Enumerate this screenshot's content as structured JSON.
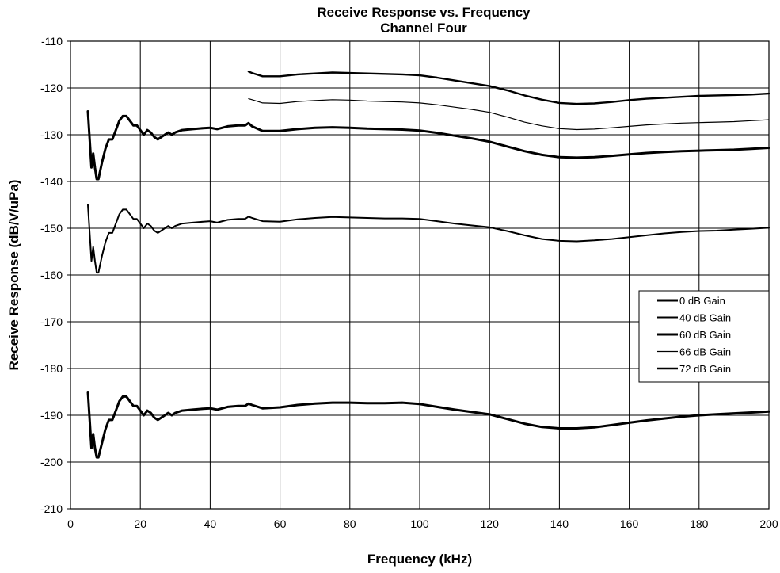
{
  "chart_data": {
    "type": "line",
    "title": "Receive Response vs. Frequency",
    "subtitle": "Channel Four",
    "xlabel": "Frequency (kHz)",
    "ylabel": "Receive Response (dB/V/uPa)",
    "xlim": [
      0,
      200
    ],
    "ylim": [
      -210,
      -110
    ],
    "x_ticks": [
      "0",
      "20",
      "40",
      "60",
      "80",
      "100",
      "120",
      "140",
      "160",
      "180",
      "200"
    ],
    "y_ticks": [
      "-110",
      "-120",
      "-130",
      "-140",
      "-150",
      "-160",
      "-170",
      "-180",
      "-190",
      "-200",
      "-210"
    ],
    "grid": true,
    "legend_position": "right",
    "series": [
      {
        "name": "0 dB Gain",
        "x": [
          5,
          6,
          6.5,
          7,
          7.5,
          8,
          9,
          10,
          11,
          12,
          13,
          14,
          15,
          16,
          17,
          18,
          19,
          20,
          21,
          22,
          23,
          24,
          25,
          26,
          27,
          28,
          29,
          30,
          32,
          35,
          38,
          40,
          42,
          45,
          48,
          50,
          51,
          52,
          55,
          60,
          65,
          70,
          75,
          80,
          85,
          90,
          95,
          100,
          105,
          110,
          115,
          120,
          125,
          130,
          135,
          140,
          145,
          150,
          155,
          160,
          165,
          170,
          175,
          180,
          185,
          190,
          195,
          200
        ],
        "y": [
          -185,
          -197,
          -194,
          -197,
          -199,
          -199,
          -196,
          -193,
          -191,
          -191,
          -189,
          -187,
          -186,
          -186,
          -187,
          -188,
          -188,
          -189,
          -190,
          -189,
          -189.5,
          -190.5,
          -191,
          -190.5,
          -190,
          -189.5,
          -190,
          -189.5,
          -189,
          -188.8,
          -188.6,
          -188.5,
          -188.8,
          -188.2,
          -188,
          -188,
          -187.5,
          -187.8,
          -188.5,
          -188.3,
          -187.8,
          -187.5,
          -187.3,
          -187.3,
          -187.4,
          -187.4,
          -187.3,
          -187.6,
          -188.2,
          -188.8,
          -189.3,
          -189.8,
          -190.8,
          -191.8,
          -192.5,
          -192.8,
          -192.8,
          -192.6,
          -192.1,
          -191.6,
          -191.1,
          -190.7,
          -190.3,
          -190,
          -189.8,
          -189.6,
          -189.4,
          -189.2
        ]
      },
      {
        "name": "40 dB Gain",
        "x": [
          5,
          6,
          6.5,
          7,
          7.5,
          8,
          9,
          10,
          11,
          12,
          13,
          14,
          15,
          16,
          17,
          18,
          19,
          20,
          21,
          22,
          23,
          24,
          25,
          26,
          27,
          28,
          29,
          30,
          32,
          35,
          38,
          40,
          42,
          45,
          48,
          50,
          51,
          52,
          55,
          60,
          65,
          70,
          75,
          80,
          85,
          90,
          95,
          100,
          105,
          110,
          115,
          120,
          125,
          130,
          135,
          140,
          145,
          150,
          155,
          160,
          165,
          170,
          175,
          180,
          185,
          190,
          195,
          200
        ],
        "y": [
          -145,
          -157,
          -154,
          -157,
          -159.5,
          -159.5,
          -156,
          -153,
          -151,
          -151,
          -149,
          -147,
          -146,
          -146,
          -147,
          -148,
          -148,
          -149,
          -150,
          -149,
          -149.5,
          -150.5,
          -151,
          -150.5,
          -150,
          -149.5,
          -150,
          -149.5,
          -149,
          -148.8,
          -148.6,
          -148.5,
          -148.8,
          -148.2,
          -148,
          -148,
          -147.5,
          -147.8,
          -148.5,
          -148.6,
          -148.1,
          -147.8,
          -147.6,
          -147.7,
          -147.8,
          -147.9,
          -147.9,
          -148,
          -148.5,
          -149,
          -149.4,
          -149.8,
          -150.6,
          -151.5,
          -152.3,
          -152.7,
          -152.8,
          -152.6,
          -152.3,
          -151.9,
          -151.5,
          -151.1,
          -150.8,
          -150.6,
          -150.5,
          -150.3,
          -150.1,
          -149.9
        ]
      },
      {
        "name": "60 dB Gain",
        "x": [
          5,
          6,
          6.5,
          7,
          7.5,
          8,
          9,
          10,
          11,
          12,
          13,
          14,
          15,
          16,
          17,
          18,
          19,
          20,
          21,
          22,
          23,
          24,
          25,
          26,
          27,
          28,
          29,
          30,
          32,
          35,
          38,
          40,
          42,
          45,
          48,
          50,
          51,
          52,
          55,
          60,
          65,
          70,
          75,
          80,
          85,
          90,
          95,
          100,
          105,
          110,
          115,
          120,
          125,
          130,
          135,
          140,
          145,
          150,
          155,
          160,
          165,
          170,
          175,
          180,
          185,
          190,
          195,
          200
        ],
        "y": [
          -125,
          -137,
          -134,
          -137,
          -139.5,
          -139.5,
          -136,
          -133,
          -131,
          -131,
          -129,
          -127,
          -126,
          -126,
          -127,
          -128,
          -128,
          -129,
          -130,
          -129,
          -129.5,
          -130.5,
          -131,
          -130.5,
          -130,
          -129.5,
          -130,
          -129.5,
          -129,
          -128.8,
          -128.6,
          -128.5,
          -128.8,
          -128.2,
          -128,
          -128,
          -127.5,
          -128.2,
          -129.2,
          -129.2,
          -128.8,
          -128.5,
          -128.4,
          -128.5,
          -128.7,
          -128.8,
          -128.9,
          -129.1,
          -129.6,
          -130.2,
          -130.8,
          -131.5,
          -132.5,
          -133.5,
          -134.3,
          -134.8,
          -134.9,
          -134.8,
          -134.5,
          -134.2,
          -133.9,
          -133.7,
          -133.5,
          -133.4,
          -133.3,
          -133.2,
          -133,
          -132.8
        ]
      },
      {
        "name": "66 dB Gain",
        "x": [
          51,
          52,
          55,
          60,
          65,
          70,
          75,
          80,
          85,
          90,
          95,
          100,
          105,
          110,
          115,
          120,
          125,
          130,
          135,
          140,
          145,
          150,
          155,
          160,
          165,
          170,
          175,
          180,
          185,
          190,
          195,
          200
        ],
        "y": [
          -122.3,
          -122.5,
          -123.2,
          -123.3,
          -122.9,
          -122.7,
          -122.5,
          -122.6,
          -122.8,
          -122.9,
          -123,
          -123.2,
          -123.6,
          -124.1,
          -124.6,
          -125.2,
          -126.2,
          -127.3,
          -128.1,
          -128.7,
          -128.9,
          -128.8,
          -128.5,
          -128.2,
          -127.9,
          -127.7,
          -127.5,
          -127.4,
          -127.3,
          -127.2,
          -127,
          -126.8
        ]
      },
      {
        "name": "72 dB Gain",
        "x": [
          51,
          52,
          55,
          60,
          65,
          70,
          75,
          80,
          85,
          90,
          95,
          100,
          105,
          110,
          115,
          120,
          125,
          130,
          135,
          140,
          145,
          150,
          155,
          160,
          165,
          170,
          175,
          180,
          185,
          190,
          195,
          200
        ],
        "y": [
          -116.5,
          -116.8,
          -117.5,
          -117.5,
          -117.1,
          -116.9,
          -116.7,
          -116.8,
          -116.9,
          -117,
          -117.1,
          -117.3,
          -117.8,
          -118.4,
          -119,
          -119.6,
          -120.5,
          -121.6,
          -122.5,
          -123.2,
          -123.4,
          -123.3,
          -123,
          -122.6,
          -122.3,
          -122.1,
          -121.9,
          -121.7,
          -121.6,
          -121.5,
          -121.4,
          -121.2
        ]
      }
    ]
  }
}
